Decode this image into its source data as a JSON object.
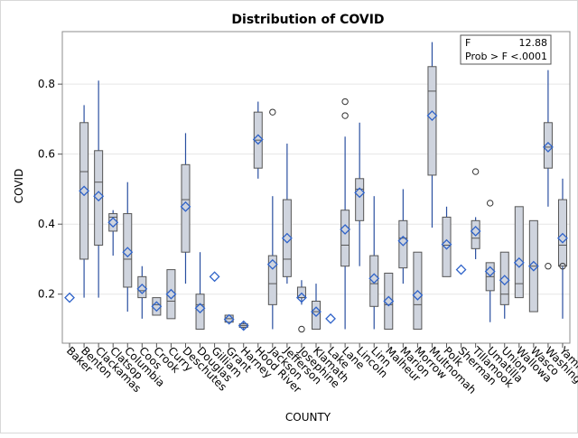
{
  "chart_data": {
    "type": "box",
    "title": "Distribution of COVID",
    "xlabel": "COUNTY",
    "ylabel": "COVID",
    "ylim": [
      0.06,
      0.95
    ],
    "yticks": [
      "0.2",
      "0.4",
      "0.6",
      "0.8"
    ],
    "grid": "horizontal",
    "stats_box": {
      "f_label": "F",
      "f_value": "12.88",
      "p_label": "Prob > F",
      "p_value": "<.0001",
      "placement": "top-right"
    },
    "colors": {
      "box_fill": "#cfd4de",
      "box_stroke": "#555555",
      "whisker": "#2a4fa0",
      "mean": "#2f63c9",
      "grid": "#e6e6e6"
    },
    "categories": [
      "Baker",
      "Benton",
      "Clackamas",
      "Clatsop",
      "Columbia",
      "Coos",
      "Crook",
      "Curry",
      "Deschutes",
      "Douglas",
      "Gilliam",
      "Grant",
      "Harney",
      "Hood River",
      "Jackson",
      "Jefferson",
      "Josephine",
      "Klamath",
      "Lake",
      "Lane",
      "Lincoln",
      "Linn",
      "Malheur",
      "Marion",
      "Morrow",
      "Multnomah",
      "Polk",
      "Sherman",
      "Tillamook",
      "Umatilla",
      "Union",
      "Wallowa",
      "Wasco",
      "Washington",
      "Yamhill"
    ],
    "boxes": [
      {
        "min": null,
        "q1": null,
        "median": null,
        "q3": null,
        "max": null,
        "mean": 0.19,
        "outliers": []
      },
      {
        "min": 0.19,
        "q1": 0.3,
        "median": 0.55,
        "q3": 0.69,
        "max": 0.74,
        "mean": 0.495,
        "outliers": []
      },
      {
        "min": 0.19,
        "q1": 0.34,
        "median": 0.52,
        "q3": 0.61,
        "max": 0.81,
        "mean": 0.48,
        "outliers": []
      },
      {
        "min": 0.31,
        "q1": 0.38,
        "median": 0.42,
        "q3": 0.43,
        "max": 0.44,
        "mean": 0.405,
        "outliers": []
      },
      {
        "min": 0.15,
        "q1": 0.22,
        "median": 0.3,
        "q3": 0.43,
        "max": 0.52,
        "mean": 0.32,
        "outliers": []
      },
      {
        "min": 0.13,
        "q1": 0.19,
        "median": 0.21,
        "q3": 0.25,
        "max": 0.28,
        "mean": 0.215,
        "outliers": []
      },
      {
        "min": 0.14,
        "q1": 0.14,
        "median": 0.17,
        "q3": 0.19,
        "max": 0.19,
        "mean": 0.165,
        "outliers": []
      },
      {
        "min": 0.13,
        "q1": 0.13,
        "median": 0.18,
        "q3": 0.27,
        "max": 0.27,
        "mean": 0.2,
        "outliers": []
      },
      {
        "min": 0.23,
        "q1": 0.32,
        "median": 0.47,
        "q3": 0.57,
        "max": 0.66,
        "mean": 0.45,
        "outliers": []
      },
      {
        "min": 0.1,
        "q1": 0.1,
        "median": 0.17,
        "q3": 0.2,
        "max": 0.32,
        "mean": 0.16,
        "outliers": []
      },
      {
        "min": null,
        "q1": null,
        "median": null,
        "q3": null,
        "max": null,
        "mean": 0.25,
        "outliers": []
      },
      {
        "min": 0.12,
        "q1": 0.12,
        "median": 0.13,
        "q3": 0.14,
        "max": 0.14,
        "mean": 0.128,
        "outliers": []
      },
      {
        "min": 0.1,
        "q1": 0.105,
        "median": 0.11,
        "q3": 0.115,
        "max": 0.12,
        "mean": 0.11,
        "outliers": []
      },
      {
        "min": 0.53,
        "q1": 0.56,
        "median": 0.64,
        "q3": 0.72,
        "max": 0.75,
        "mean": 0.642,
        "outliers": []
      },
      {
        "min": 0.1,
        "q1": 0.17,
        "median": 0.23,
        "q3": 0.31,
        "max": 0.48,
        "mean": 0.285,
        "outliers": [
          0.72
        ]
      },
      {
        "min": 0.23,
        "q1": 0.25,
        "median": 0.3,
        "q3": 0.47,
        "max": 0.63,
        "mean": 0.36,
        "outliers": []
      },
      {
        "min": 0.17,
        "q1": 0.19,
        "median": 0.19,
        "q3": 0.22,
        "max": 0.24,
        "mean": 0.19,
        "outliers": [
          0.1
        ]
      },
      {
        "min": 0.1,
        "q1": 0.1,
        "median": 0.15,
        "q3": 0.18,
        "max": 0.23,
        "mean": 0.15,
        "outliers": []
      },
      {
        "min": null,
        "q1": null,
        "median": null,
        "q3": null,
        "max": null,
        "mean": 0.13,
        "outliers": []
      },
      {
        "min": 0.1,
        "q1": 0.28,
        "median": 0.34,
        "q3": 0.44,
        "max": 0.65,
        "mean": 0.385,
        "outliers": [
          0.71,
          0.75
        ]
      },
      {
        "min": 0.28,
        "q1": 0.41,
        "median": 0.5,
        "q3": 0.53,
        "max": 0.69,
        "mean": 0.49,
        "outliers": []
      },
      {
        "min": 0.1,
        "q1": 0.165,
        "median": 0.23,
        "q3": 0.31,
        "max": 0.48,
        "mean": 0.245,
        "outliers": []
      },
      {
        "min": 0.1,
        "q1": 0.1,
        "median": 0.17,
        "q3": 0.26,
        "max": 0.26,
        "mean": 0.18,
        "outliers": []
      },
      {
        "min": 0.23,
        "q1": 0.275,
        "median": 0.36,
        "q3": 0.41,
        "max": 0.5,
        "mean": 0.352,
        "outliers": []
      },
      {
        "min": 0.1,
        "q1": 0.1,
        "median": 0.17,
        "q3": 0.32,
        "max": 0.32,
        "mean": 0.197,
        "outliers": []
      },
      {
        "min": 0.39,
        "q1": 0.54,
        "median": 0.78,
        "q3": 0.85,
        "max": 0.92,
        "mean": 0.71,
        "outliers": []
      },
      {
        "min": 0.25,
        "q1": 0.25,
        "median": 0.34,
        "q3": 0.42,
        "max": 0.45,
        "mean": 0.342,
        "outliers": []
      },
      {
        "min": null,
        "q1": null,
        "median": null,
        "q3": null,
        "max": null,
        "mean": 0.27,
        "outliers": []
      },
      {
        "min": 0.3,
        "q1": 0.33,
        "median": 0.36,
        "q3": 0.41,
        "max": 0.42,
        "mean": 0.38,
        "outliers": [
          0.55
        ]
      },
      {
        "min": 0.12,
        "q1": 0.21,
        "median": 0.25,
        "q3": 0.29,
        "max": 0.29,
        "mean": 0.265,
        "outliers": [
          0.46
        ]
      },
      {
        "min": 0.13,
        "q1": 0.17,
        "median": 0.2,
        "q3": 0.32,
        "max": 0.32,
        "mean": 0.24,
        "outliers": []
      },
      {
        "min": 0.19,
        "q1": 0.19,
        "median": 0.23,
        "q3": 0.45,
        "max": 0.45,
        "mean": 0.29,
        "outliers": []
      },
      {
        "min": 0.15,
        "q1": 0.15,
        "median": 0.28,
        "q3": 0.41,
        "max": 0.41,
        "mean": 0.28,
        "outliers": []
      },
      {
        "min": 0.45,
        "q1": 0.56,
        "median": 0.62,
        "q3": 0.69,
        "max": 0.84,
        "mean": 0.62,
        "outliers": [
          0.28
        ]
      },
      {
        "min": 0.13,
        "q1": 0.28,
        "median": 0.34,
        "q3": 0.47,
        "max": 0.53,
        "mean": 0.36,
        "outliers": [
          0.28
        ]
      }
    ]
  }
}
